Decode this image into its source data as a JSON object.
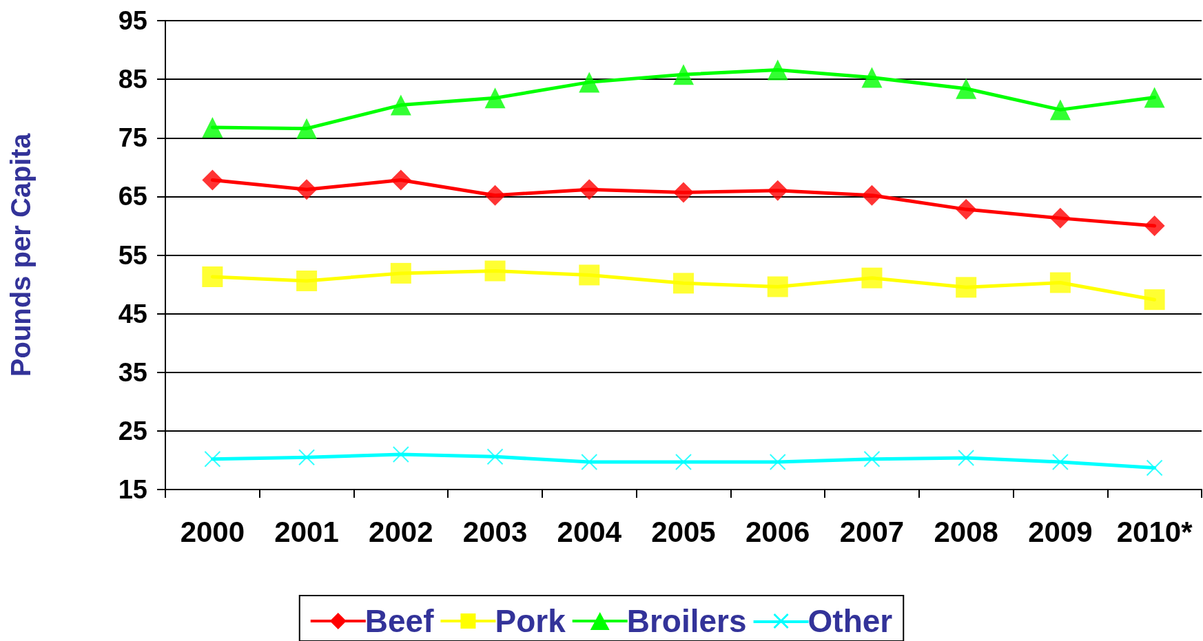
{
  "chart_data": {
    "type": "line",
    "ylabel": "Pounds per Capita",
    "categories": [
      "2000",
      "2001",
      "2002",
      "2003",
      "2004",
      "2005",
      "2006",
      "2007",
      "2008",
      "2009",
      "2010*"
    ],
    "series": [
      {
        "name": "Beef",
        "color": "#ff0000",
        "marker": "diamond",
        "values": [
          67.8,
          66.2,
          67.8,
          65.2,
          66.2,
          65.7,
          66.0,
          65.2,
          62.8,
          61.3,
          60.0
        ]
      },
      {
        "name": "Pork",
        "color": "#ffff00",
        "marker": "square",
        "values": [
          51.3,
          50.6,
          51.9,
          52.3,
          51.6,
          50.2,
          49.6,
          51.1,
          49.5,
          50.3,
          47.4
        ]
      },
      {
        "name": "Broilers",
        "color": "#00ff00",
        "marker": "triangle",
        "values": [
          76.8,
          76.6,
          80.6,
          81.8,
          84.5,
          85.8,
          86.6,
          85.3,
          83.4,
          79.8,
          81.9
        ]
      },
      {
        "name": "Other",
        "color": "#00ffff",
        "marker": "cross",
        "values": [
          20.2,
          20.5,
          21.0,
          20.6,
          19.7,
          19.7,
          19.7,
          20.2,
          20.4,
          19.7,
          18.7
        ]
      }
    ],
    "ylim": [
      15,
      95
    ],
    "yticks": [
      15,
      25,
      35,
      45,
      55,
      65,
      75,
      85,
      95
    ],
    "grid": "y",
    "legend": "bottom",
    "line_style": "solid"
  }
}
